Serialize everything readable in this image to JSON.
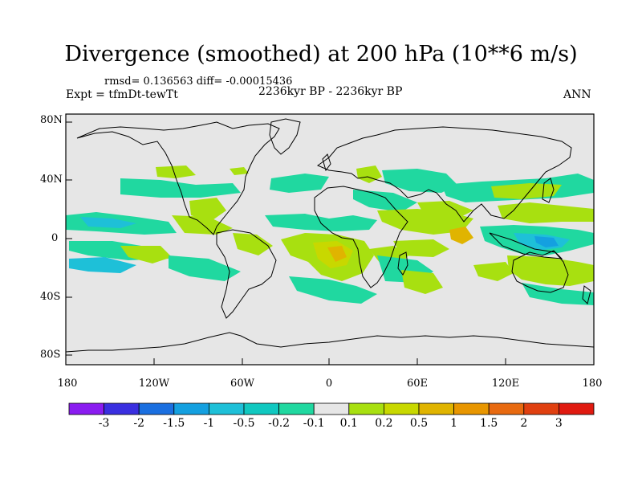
{
  "title": "Divergence (smoothed) at 200 hPa (10**6 m/s)",
  "stats_line": "rmsd= 0.136563 diff= -0.00015436",
  "experiment": "Expt = tfmDt-tewTt",
  "period": "2236kyr BP - 2236kyr BP",
  "season": "ANN",
  "lat_labels": [
    "80N",
    "40N",
    "0",
    "40S",
    "80S"
  ],
  "lon_labels": [
    "180",
    "120W",
    "60W",
    "0",
    "60E",
    "120E",
    "180"
  ],
  "colorbar": {
    "labels": [
      "-3",
      "-2",
      "-1.5",
      "-1",
      "-0.5",
      "-0.2",
      "-0.1",
      "0.1",
      "0.2",
      "0.5",
      "1",
      "1.5",
      "2",
      "3"
    ],
    "colors": [
      "#8a1cf0",
      "#3a2fe0",
      "#1a6fe0",
      "#14a0e0",
      "#1ec0d8",
      "#10c8c0",
      "#20d8a0",
      "#e6e6e6",
      "#a8e010",
      "#c8d800",
      "#e0b400",
      "#e89600",
      "#e86a10",
      "#e04010",
      "#e01a10"
    ]
  },
  "palette": {
    "neutral": "#e6e6e6",
    "teal": "#20d8a0",
    "cyan": "#1ec0d8",
    "blue": "#14a0e0",
    "lime": "#a8e010",
    "olive": "#c8d800",
    "orange": "#e0b400"
  }
}
